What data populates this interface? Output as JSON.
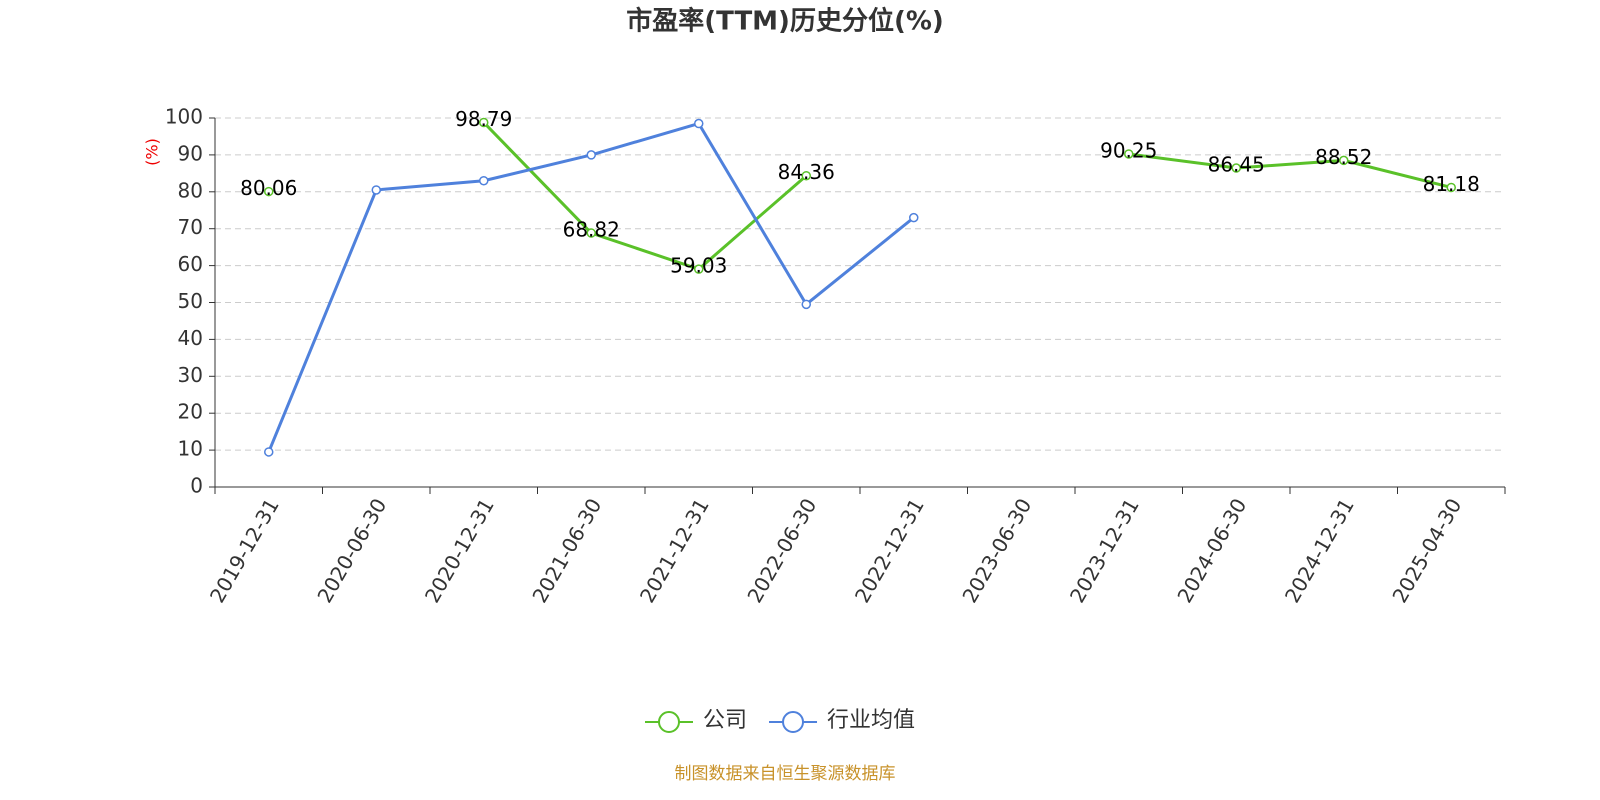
{
  "chart_data": {
    "type": "line",
    "title": "市盈率(TTM)历史分位(%)",
    "y_label": "(%)",
    "categories": [
      "2019-12-31",
      "2020-06-30",
      "2020-12-31",
      "2021-06-30",
      "2021-12-31",
      "2022-06-30",
      "2022-12-31",
      "2023-06-30",
      "2023-12-31",
      "2024-06-30",
      "2024-12-31",
      "2025-04-30"
    ],
    "series": [
      {
        "name": "公司",
        "color": "#5ac129",
        "show_labels": true,
        "values": [
          80.06,
          null,
          98.79,
          68.82,
          59.03,
          84.36,
          null,
          null,
          90.25,
          86.45,
          88.52,
          81.18
        ]
      },
      {
        "name": "行业均值",
        "color": "#4f81dc",
        "show_labels": false,
        "values": [
          9.5,
          80.5,
          83,
          90,
          98.5,
          49.5,
          73,
          null,
          null,
          null,
          null,
          null
        ]
      }
    ],
    "ylim": [
      0,
      100
    ],
    "yticks": [
      0,
      10,
      20,
      30,
      40,
      50,
      60,
      70,
      80,
      90,
      100
    ],
    "grid": true,
    "legend": "bottom",
    "source": "制图数据来自恒生聚源数据库"
  }
}
